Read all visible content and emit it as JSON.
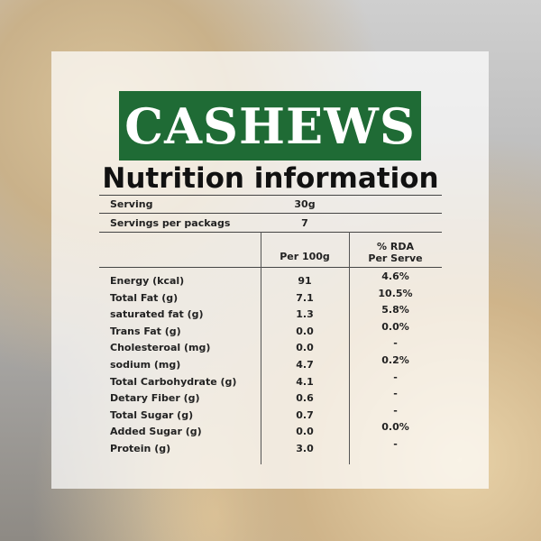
{
  "brand": {
    "title": "CASHEWS",
    "color": "#1f6b35"
  },
  "heading": "Nutrition information",
  "serving": {
    "label": "Serving",
    "value": "30g"
  },
  "servings_per_pack": {
    "label": "Servings per packags",
    "value": "7"
  },
  "columns": {
    "per100": "Per 100g",
    "rda_line1": "% RDA",
    "rda_line2": "Per Serve"
  },
  "rows": [
    {
      "name": "Energy (kcal)",
      "per100": "91",
      "rda": "4.6%"
    },
    {
      "name": "Total Fat (g)",
      "per100": "7.1",
      "rda": "10.5%"
    },
    {
      "name": "saturated fat (g)",
      "per100": "1.3",
      "rda": "5.8%"
    },
    {
      "name": "Trans Fat (g)",
      "per100": "0.0",
      "rda": "0.0%"
    },
    {
      "name": "Cholesteroal (mg)",
      "per100": "0.0",
      "rda": "-"
    },
    {
      "name": "sodium (mg)",
      "per100": "4.7",
      "rda": "0.2%"
    },
    {
      "name": "Total Carbohydrate (g)",
      "per100": "4.1",
      "rda": "-"
    },
    {
      "name": "Detary Fiber (g)",
      "per100": "0.6",
      "rda": "-"
    },
    {
      "name": "Total Sugar (g)",
      "per100": "0.7",
      "rda": "-"
    },
    {
      "name": "Added Sugar (g)",
      "per100": "0.0",
      "rda": "0.0%"
    },
    {
      "name": "Protein (g)",
      "per100": "3.0",
      "rda": "-"
    }
  ]
}
